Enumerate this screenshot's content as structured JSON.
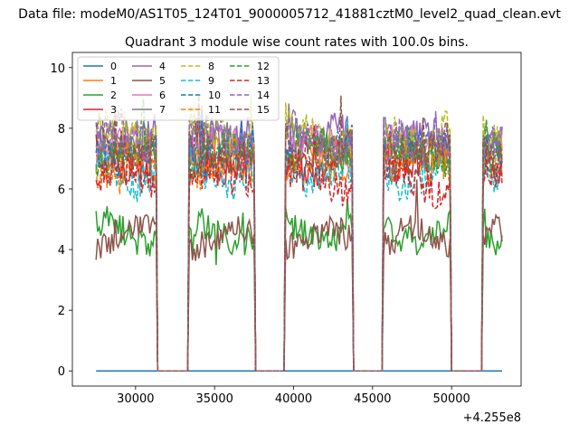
{
  "chart_data": {
    "type": "line",
    "figure_title": "Data file: modeM0/AS1T05_124T01_9000005712_41881cztM0_level2_quad_clean.evt",
    "title": "Quadrant 3 module wise count rates with 100.0s bins.",
    "xlabel": "",
    "ylabel": "",
    "x_offset_text": "+4.255e8",
    "xlim": [
      26000,
      54400
    ],
    "ylim": [
      -0.5,
      10.5
    ],
    "xticks": [
      30000,
      35000,
      40000,
      45000,
      50000
    ],
    "yticks": [
      0,
      2,
      4,
      6,
      8,
      10
    ],
    "x_range": [
      27500,
      53200
    ],
    "bin_seconds": 100,
    "segments": [
      [
        27500,
        31300
      ],
      [
        33400,
        37500
      ],
      [
        39500,
        43700
      ],
      [
        45700,
        49900
      ],
      [
        52000,
        53200
      ]
    ],
    "grid": false,
    "legend": {
      "location": "upper-left",
      "columns": 4
    },
    "series": [
      {
        "name": "0",
        "level": 0,
        "amp": 0,
        "color": "#1f77b4",
        "style": "solid"
      },
      {
        "name": "1",
        "level": 7.0,
        "amp": 0.6,
        "color": "#ff7f0e",
        "style": "solid"
      },
      {
        "name": "2",
        "level": 4.6,
        "amp": 0.5,
        "color": "#2ca02c",
        "style": "solid"
      },
      {
        "name": "3",
        "level": 7.0,
        "amp": 0.6,
        "color": "#d62728",
        "style": "solid"
      },
      {
        "name": "4",
        "level": 7.6,
        "amp": 0.6,
        "color": "#9467bd",
        "style": "solid"
      },
      {
        "name": "5",
        "level": 4.4,
        "amp": 0.5,
        "color": "#8c564b",
        "style": "solid"
      },
      {
        "name": "6",
        "level": 7.3,
        "amp": 0.6,
        "color": "#e377c2",
        "style": "solid"
      },
      {
        "name": "7",
        "level": 7.5,
        "amp": 0.6,
        "color": "#7f7f7f",
        "style": "solid"
      },
      {
        "name": "8",
        "level": 7.9,
        "amp": 0.6,
        "color": "#bcbd22",
        "style": "dashed"
      },
      {
        "name": "9",
        "level": 6.5,
        "amp": 0.6,
        "color": "#17becf",
        "style": "dashed"
      },
      {
        "name": "10",
        "level": 7.2,
        "amp": 0.6,
        "color": "#1f77b4",
        "style": "dashed"
      },
      {
        "name": "11",
        "level": 6.9,
        "amp": 0.6,
        "color": "#ff7f0e",
        "style": "dashed"
      },
      {
        "name": "12",
        "level": 7.1,
        "amp": 0.6,
        "color": "#2ca02c",
        "style": "dashed"
      },
      {
        "name": "13",
        "level": 6.3,
        "amp": 0.6,
        "color": "#d62728",
        "style": "dashed"
      },
      {
        "name": "14",
        "level": 7.7,
        "amp": 0.6,
        "color": "#9467bd",
        "style": "dashed"
      },
      {
        "name": "15",
        "level": 7.4,
        "amp": 0.6,
        "color": "#8c564b",
        "style": "dashed"
      }
    ]
  }
}
